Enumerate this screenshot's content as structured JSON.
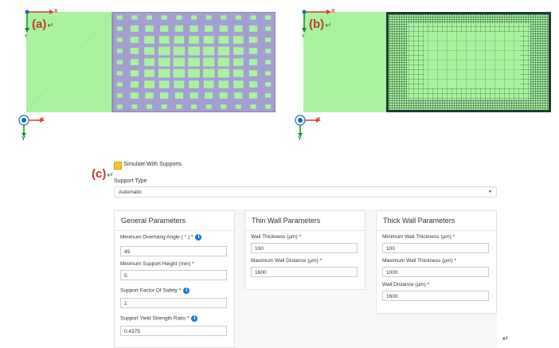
{
  "panels": {
    "a": {
      "label": "(a)"
    },
    "b": {
      "label": "(b)"
    },
    "c": {
      "label": "(c)"
    }
  },
  "axes": {
    "x": "X",
    "y": "Y"
  },
  "return_mark": "↵",
  "colors": {
    "part_green": "#aaf2a0",
    "support_lavender": "#a3a0d0",
    "mesh_dark": "#214a35",
    "accent_blue": "#1976d2",
    "checkbox_yellow": "#f4c430"
  },
  "form": {
    "simulate_checkbox_label": "Simulate With Supports",
    "support_type_label": "Support Type",
    "support_type_value": "Automatic",
    "general": {
      "title": "General Parameters",
      "fields": [
        {
          "label": "Minimum Overhang Angle ( ° ) *",
          "value": "45",
          "info": true
        },
        {
          "label": "Minimum Support Height (mm) *",
          "value": "5",
          "info": false
        },
        {
          "label": "Support Factor Of Safety *",
          "value": "1",
          "info": true
        },
        {
          "label": "Support Yield Strength Ratio *",
          "value": "0.4375",
          "info": true
        }
      ]
    },
    "thin": {
      "title": "Thin Wall Parameters",
      "fields": [
        {
          "label": "Wall Thickness (µm) *",
          "value": "100"
        },
        {
          "label": "Maximum Wall Distance (µm) *",
          "value": "1600"
        }
      ]
    },
    "thick": {
      "title": "Thick Wall Parameters",
      "fields": [
        {
          "label": "Minimum Wall Thickness (µm) *",
          "value": "100"
        },
        {
          "label": "Maximum Wall Thickness (µm) *",
          "value": "1000"
        },
        {
          "label": "Wall Distance (µm) *",
          "value": "1600"
        }
      ]
    },
    "info_glyph": "i"
  }
}
